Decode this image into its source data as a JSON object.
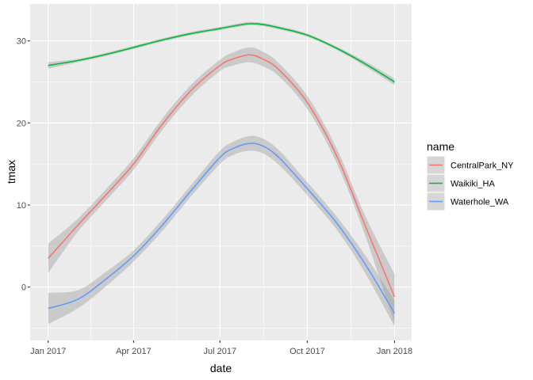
{
  "chart_data": {
    "type": "line",
    "xlabel": "date",
    "ylabel": "tmax",
    "legend_title": "name",
    "legend_position": "right",
    "grid": true,
    "x_ticks": [
      "Jan 2017",
      "Apr 2017",
      "Jul 2017",
      "Oct 2017",
      "Jan 2018"
    ],
    "y_ticks": [
      0,
      10,
      20,
      30
    ],
    "xlim": [
      "2016-12-13",
      "2018-01-19"
    ],
    "ylim": [
      -6.5,
      34.5
    ],
    "x": [
      "2017-01-01",
      "2017-02-01",
      "2017-03-01",
      "2017-04-01",
      "2017-05-01",
      "2017-06-01",
      "2017-07-01",
      "2017-07-15",
      "2017-08-01",
      "2017-08-15",
      "2017-09-01",
      "2017-10-01",
      "2017-11-01",
      "2017-12-01",
      "2018-01-01"
    ],
    "series": [
      {
        "name": "CentralPark_NY",
        "color": "#F8766D",
        "values": [
          3.5,
          7.5,
          11.0,
          15.0,
          19.8,
          24.0,
          27.0,
          27.8,
          28.3,
          27.8,
          26.5,
          22.5,
          16.0,
          7.5,
          -1.2
        ],
        "lower": [
          1.7,
          6.7,
          10.3,
          14.3,
          19.1,
          23.3,
          26.3,
          27.0,
          27.4,
          26.9,
          25.7,
          21.7,
          15.1,
          6.3,
          -4.5
        ],
        "upper": [
          5.3,
          8.3,
          11.7,
          15.7,
          20.5,
          24.7,
          27.7,
          28.6,
          29.2,
          28.7,
          27.3,
          23.3,
          16.9,
          8.7,
          1.6
        ]
      },
      {
        "name": "Waikiki_HA",
        "color": "#00BA38",
        "values": [
          27.0,
          27.6,
          28.3,
          29.2,
          30.1,
          30.9,
          31.5,
          31.8,
          32.1,
          32.0,
          31.6,
          30.7,
          29.1,
          27.2,
          25.0
        ],
        "lower": [
          26.6,
          27.4,
          28.1,
          29.0,
          29.9,
          30.7,
          31.3,
          31.6,
          31.9,
          31.8,
          31.4,
          30.5,
          28.9,
          26.9,
          24.6
        ],
        "upper": [
          27.4,
          27.8,
          28.5,
          29.4,
          30.3,
          31.1,
          31.7,
          32.0,
          32.3,
          32.2,
          31.8,
          30.9,
          29.3,
          27.5,
          25.4
        ]
      },
      {
        "name": "Waterhole_WA",
        "color": "#619CFF",
        "values": [
          -2.6,
          -1.5,
          0.8,
          3.8,
          7.5,
          11.8,
          15.8,
          16.9,
          17.5,
          17.2,
          15.8,
          12.0,
          7.8,
          2.8,
          -3.2
        ],
        "lower": [
          -4.5,
          -2.6,
          -0.1,
          3.1,
          6.8,
          11.1,
          15.0,
          16.1,
          16.6,
          16.3,
          14.9,
          11.2,
          7.0,
          1.7,
          -4.8
        ],
        "upper": [
          -0.7,
          -0.4,
          1.7,
          4.5,
          8.2,
          12.5,
          16.6,
          17.7,
          18.4,
          18.1,
          16.7,
          12.8,
          8.6,
          3.9,
          -1.6
        ]
      }
    ],
    "ribbon_color": "#999999"
  }
}
